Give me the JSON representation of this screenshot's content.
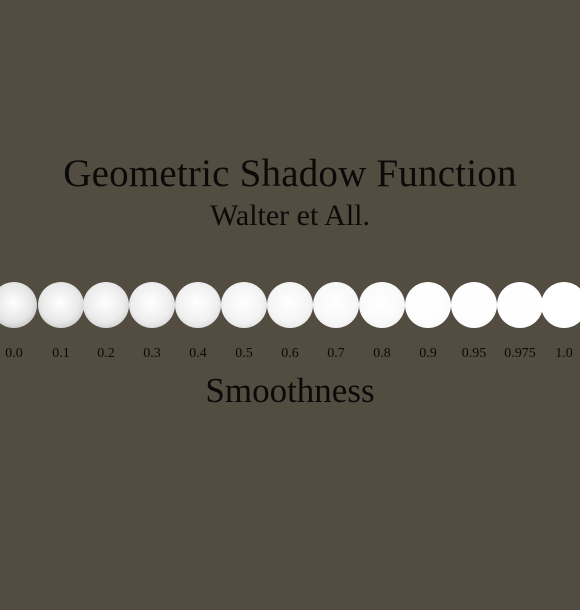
{
  "title": "Geometric Shadow Function",
  "subtitle": "Walter et All.",
  "axis_label": "Smoothness",
  "colors": {
    "background": "#534c40",
    "text": "#0c0a08",
    "sphere": "#ffffff"
  },
  "spheres": [
    {
      "label": "0.0",
      "smoothness": 0.0
    },
    {
      "label": "0.1",
      "smoothness": 0.1
    },
    {
      "label": "0.2",
      "smoothness": 0.2
    },
    {
      "label": "0.3",
      "smoothness": 0.3
    },
    {
      "label": "0.4",
      "smoothness": 0.4
    },
    {
      "label": "0.5",
      "smoothness": 0.5
    },
    {
      "label": "0.6",
      "smoothness": 0.6
    },
    {
      "label": "0.7",
      "smoothness": 0.7
    },
    {
      "label": "0.8",
      "smoothness": 0.8
    },
    {
      "label": "0.9",
      "smoothness": 0.9
    },
    {
      "label": "0.95",
      "smoothness": 0.95
    },
    {
      "label": "0.975",
      "smoothness": 0.975
    },
    {
      "label": "1.0",
      "smoothness": 1.0
    }
  ]
}
